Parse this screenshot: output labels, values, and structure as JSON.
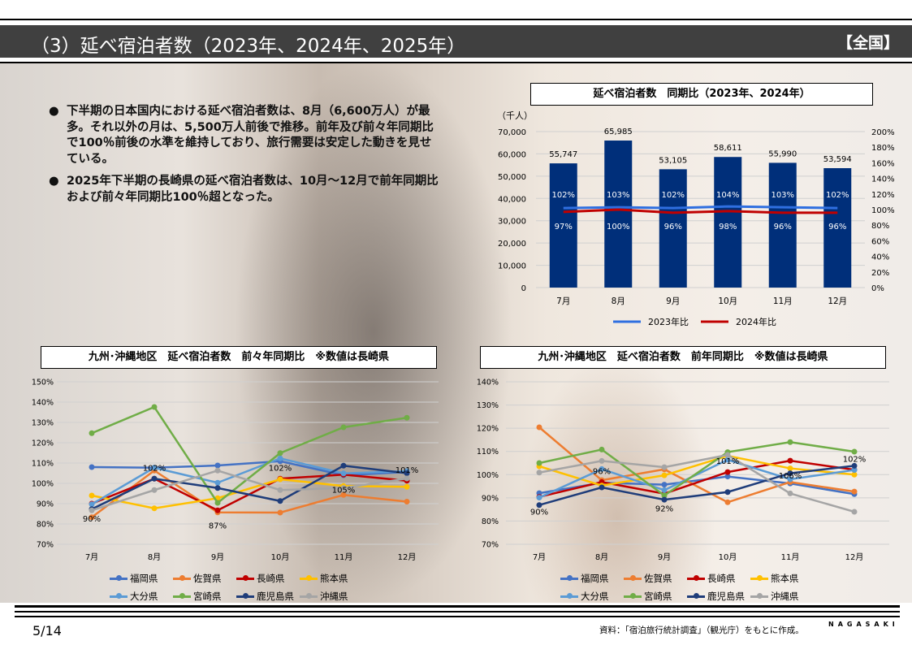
{
  "header": {
    "title": "（3）延べ宿泊者数（2023年、2024年、2025年）",
    "region": "【全国】"
  },
  "bullets": [
    "下半期の日本国内における延べ宿泊者数は、8月（6,600万人）が最多。それ以外の月は、5,500万人前後で推移。前年及び前々年同期比で100％前後の水準を維持しており、旅行需要は安定した動きを見せている。",
    "2025年下半期の長崎県の延べ宿泊者数は、10月～12月で前年同期比および前々年同期比100％超となった。"
  ],
  "footer": {
    "page": "5/14",
    "source": "資料：「宿泊旅行統計調査」（観光庁）をもとに作成。",
    "brand": "NAGASAKI"
  },
  "chart_data": [
    {
      "type": "bar",
      "title": "延べ宿泊者数　同期比（2023年、2024年）",
      "unit_label": "（千人）",
      "categories": [
        "7月",
        "8月",
        "9月",
        "10月",
        "11月",
        "12月"
      ],
      "values": [
        55747,
        65985,
        53105,
        58611,
        55990,
        53594
      ],
      "value_labels": [
        "55,747",
        "65,985",
        "53,105",
        "58,611",
        "55,990",
        "53,594"
      ],
      "ylim": [
        0,
        70000
      ],
      "yticks": [
        "0",
        "10,000",
        "20,000",
        "30,000",
        "40,000",
        "50,000",
        "60,000",
        "70,000"
      ],
      "y2lim": [
        0,
        200
      ],
      "y2ticks": [
        "0%",
        "20%",
        "40%",
        "60%",
        "80%",
        "100%",
        "120%",
        "140%",
        "160%",
        "180%",
        "200%"
      ],
      "bar_color": "#002F7A",
      "series": [
        {
          "name": "2023年比",
          "values": [
            102,
            103,
            102,
            104,
            103,
            102
          ],
          "labels": [
            "102%",
            "103%",
            "102%",
            "104%",
            "103%",
            "102%"
          ],
          "color": "#2F6FE0"
        },
        {
          "name": "2024年比",
          "values": [
            97,
            100,
            96,
            98,
            96,
            96
          ],
          "labels": [
            "97%",
            "100%",
            "96%",
            "98%",
            "96%",
            "96%"
          ],
          "color": "#C00000"
        }
      ],
      "grid": true,
      "legend": "bottom"
    },
    {
      "type": "line",
      "title": "九州･沖縄地区　延べ宿泊者数　前々年同期比　※数値は長崎県",
      "categories": [
        "7月",
        "8月",
        "9月",
        "10月",
        "11月",
        "12月"
      ],
      "ylim": [
        70,
        150
      ],
      "yticks": [
        "70%",
        "80%",
        "90%",
        "100%",
        "110%",
        "120%",
        "130%",
        "140%",
        "150%"
      ],
      "annotations": [
        "90%",
        "102%",
        "87%",
        "102%",
        "105%",
        "101%"
      ],
      "series": [
        {
          "name": "福岡県",
          "color": "#4472C4",
          "values": [
            108,
            107.7,
            108.8,
            110.9,
            104,
            105.6
          ]
        },
        {
          "name": "佐賀県",
          "color": "#ED7D31",
          "values": [
            83.3,
            106.3,
            85.7,
            85.6,
            94.3,
            91
          ]
        },
        {
          "name": "長崎県",
          "color": "#C00000",
          "values": [
            90,
            102.3,
            86.7,
            102.3,
            104.3,
            101.3
          ]
        },
        {
          "name": "熊本県",
          "color": "#FFC000",
          "values": [
            94,
            87.7,
            92.7,
            102,
            98.7,
            98.3
          ]
        },
        {
          "name": "大分県",
          "color": "#5B9BD5",
          "values": [
            89.7,
            107.7,
            100.3,
            112.3,
            104.9,
            106
          ]
        },
        {
          "name": "宮崎県",
          "color": "#70AD47",
          "values": [
            124.7,
            137.6,
            90.4,
            114.9,
            127.6,
            132.3
          ]
        },
        {
          "name": "鹿児島県",
          "color": "#1F3D7A",
          "values": [
            87.3,
            102.3,
            97.7,
            91.3,
            108.7,
            105
          ]
        },
        {
          "name": "沖縄県",
          "color": "#A5A5A5",
          "values": [
            86.7,
            96.7,
            106.3,
            96.7,
            97.7,
            102.4
          ]
        }
      ],
      "grid": true,
      "legend": "bottom"
    },
    {
      "type": "line",
      "title": "九州･沖縄地区　延べ宿泊者数　前年同期比　※数値は長崎県",
      "categories": [
        "7月",
        "8月",
        "9月",
        "10月",
        "11月",
        "12月"
      ],
      "ylim": [
        70,
        140
      ],
      "yticks": [
        "70%",
        "80%",
        "90%",
        "100%",
        "110%",
        "120%",
        "130%",
        "140%"
      ],
      "annotations": [
        "90%",
        "96%",
        "92%",
        "101%",
        "106%",
        "102%"
      ],
      "series": [
        {
          "name": "福岡県",
          "color": "#4472C4",
          "values": [
            92,
            96.5,
            95.7,
            99.2,
            96.2,
            91.6
          ]
        },
        {
          "name": "佐賀県",
          "color": "#ED7D31",
          "values": [
            120.4,
            97.6,
            102.3,
            88.1,
            96.8,
            92.7
          ]
        },
        {
          "name": "長崎県",
          "color": "#C00000",
          "values": [
            90.4,
            96.8,
            91.8,
            101.1,
            106,
            102.1
          ]
        },
        {
          "name": "熊本県",
          "color": "#FFC000",
          "values": [
            103.6,
            95.3,
            99.7,
            108.1,
            102.7,
            100
          ]
        },
        {
          "name": "大分県",
          "color": "#5B9BD5",
          "values": [
            90.1,
            102.4,
            93.3,
            106.4,
            98,
            102
          ]
        },
        {
          "name": "宮崎県",
          "color": "#70AD47",
          "values": [
            105,
            110.8,
            91,
            109.7,
            114,
            109.9
          ]
        },
        {
          "name": "鹿児島県",
          "color": "#1F3D7A",
          "values": [
            86.9,
            94.5,
            89.2,
            92.5,
            100.6,
            103.8
          ]
        },
        {
          "name": "沖縄県",
          "color": "#A5A5A5",
          "values": [
            100.9,
            105.9,
            103.2,
            108.5,
            91.9,
            84
          ]
        }
      ],
      "grid": true,
      "legend": "bottom"
    }
  ]
}
